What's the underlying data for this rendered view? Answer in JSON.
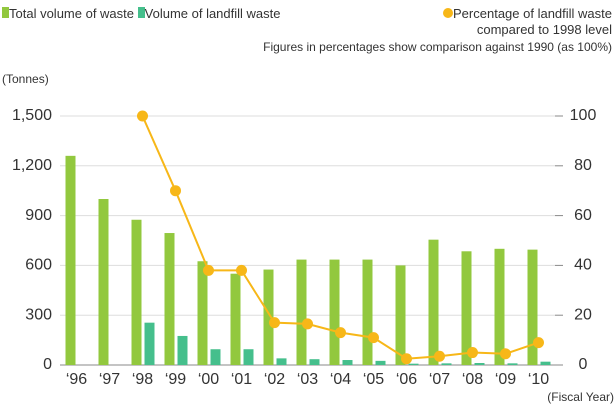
{
  "chart_data": {
    "type": "bar_line",
    "note": "Figures in percentages show comparison against 1990 (as 100%)",
    "y_label": "(Tonnes)",
    "x_label": "(Fiscal Year)",
    "categories": [
      "‘96",
      "‘97",
      "‘98",
      "‘99",
      "‘00",
      "‘01",
      "‘02",
      "‘03",
      "‘04",
      "‘05",
      "‘06",
      "‘07",
      "‘08",
      "‘09",
      "‘10"
    ],
    "series": [
      {
        "name": "Total volume of waste",
        "type": "bar",
        "color": "#92c83e",
        "values": [
          1260,
          1000,
          875,
          795,
          625,
          550,
          575,
          635,
          635,
          635,
          600,
          755,
          685,
          700,
          695
        ]
      },
      {
        "name": "Volume of landfill waste",
        "type": "bar",
        "color": "#45bf8c",
        "values": [
          null,
          null,
          255,
          175,
          95,
          95,
          40,
          35,
          30,
          25,
          8,
          10,
          12,
          10,
          20
        ]
      },
      {
        "name": "Percentage of landfill waste compared to 1998 level",
        "type": "line",
        "axis": "y2",
        "color": "#f7b718",
        "values": [
          null,
          null,
          100,
          70,
          38,
          38,
          17,
          16.5,
          13,
          11,
          2.5,
          3.5,
          5,
          4.5,
          9
        ]
      }
    ],
    "ylim": [
      0,
      1500
    ],
    "yticks": [
      0,
      300,
      600,
      900,
      {
        "value": 1200,
        "label": "1,200"
      },
      {
        "value": 1500,
        "label": "1,500"
      }
    ],
    "y2lim": [
      0,
      100
    ],
    "y2ticks": [
      0,
      20,
      40,
      60,
      80,
      100
    ],
    "grid": true
  }
}
